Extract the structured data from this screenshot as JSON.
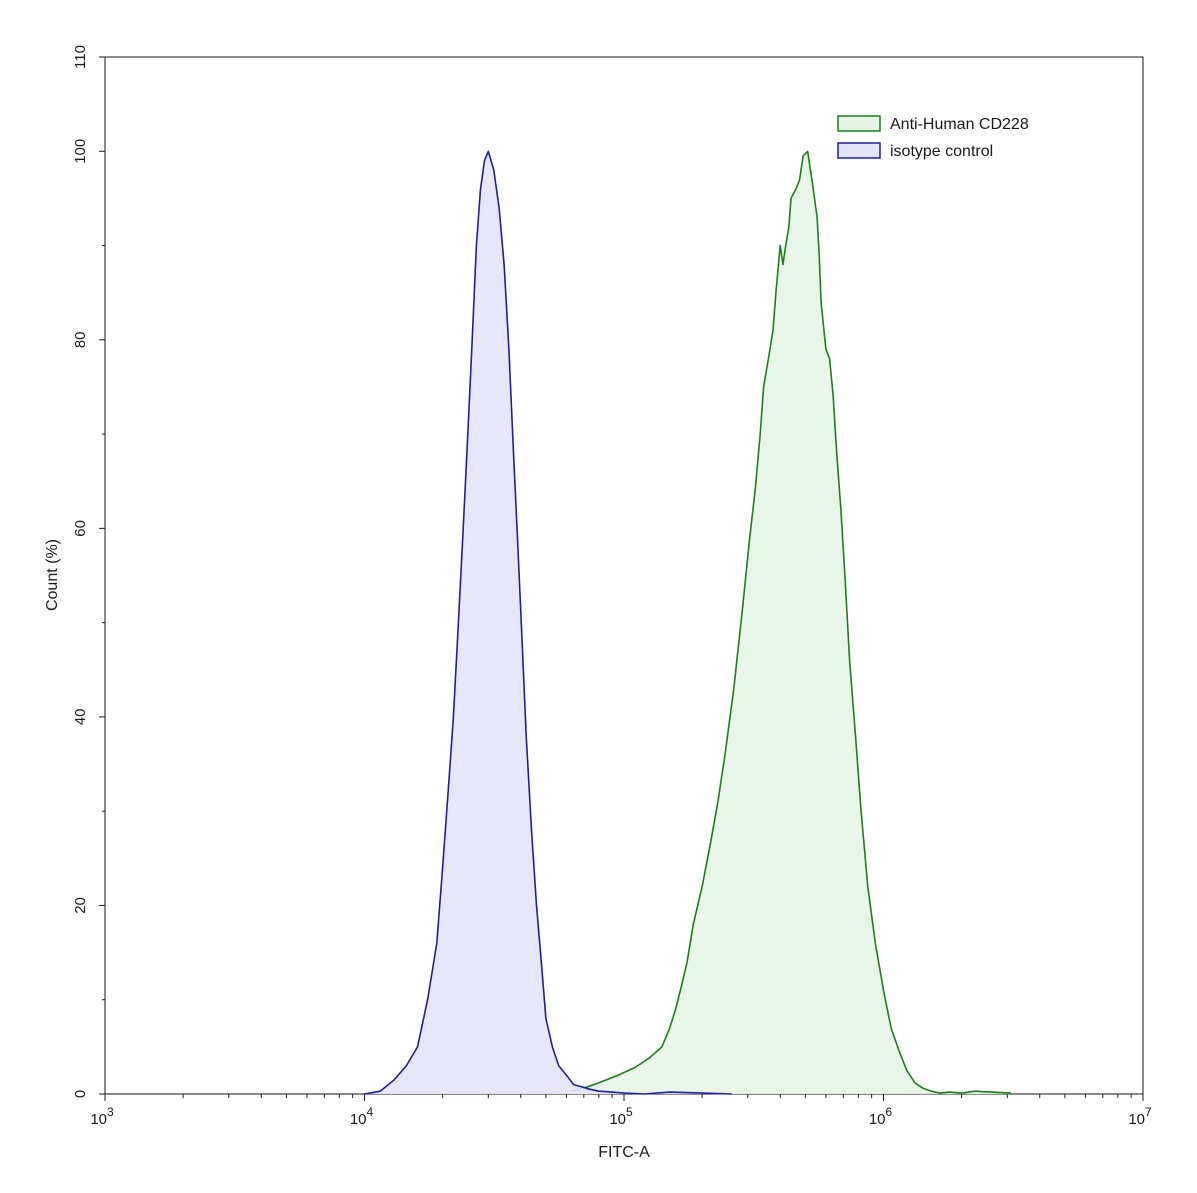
{
  "chart_data": {
    "type": "area",
    "title": "",
    "xlabel": "FITC-A",
    "ylabel": "Count  (%)",
    "x_scale": "log",
    "xlim": [
      1000,
      10000000
    ],
    "ylim": [
      0,
      110
    ],
    "x_ticks": [
      {
        "value": 1000,
        "base": "10",
        "exp": "3"
      },
      {
        "value": 10000,
        "base": "10",
        "exp": "4"
      },
      {
        "value": 100000,
        "base": "10",
        "exp": "5"
      },
      {
        "value": 1000000,
        "base": "10",
        "exp": "6"
      },
      {
        "value": 10000000,
        "base": "10",
        "exp": "7"
      }
    ],
    "y_ticks": [
      0,
      20,
      40,
      60,
      80,
      100,
      110
    ],
    "grid": false,
    "legend_position": "top-right",
    "series": [
      {
        "name": "Anti-Human CD228",
        "stroke": "#1e7d1e",
        "fill": "#e6f4e6",
        "x": [
          63000,
          73000,
          82000,
          95000,
          110000,
          125000,
          140000,
          150000,
          158000,
          165000,
          175000,
          185000,
          200000,
          215000,
          230000,
          245000,
          265000,
          285000,
          305000,
          320000,
          335000,
          345000,
          360000,
          375000,
          385000,
          400000,
          410000,
          420000,
          432000,
          440000,
          460000,
          475000,
          490000,
          510000,
          530000,
          555000,
          565000,
          575000,
          600000,
          620000,
          640000,
          660000,
          685000,
          710000,
          740000,
          780000,
          820000,
          870000,
          930000,
          1000000,
          1070000,
          1150000,
          1230000,
          1320000,
          1420000,
          1530000,
          1650000,
          1800000,
          2000000,
          2250000,
          2600000,
          3100000
        ],
        "y": [
          0.3,
          0.8,
          1.3,
          2.0,
          2.8,
          3.8,
          5.0,
          7.0,
          9.0,
          11.0,
          14.0,
          18.0,
          22.0,
          26.5,
          31.0,
          36.0,
          43.0,
          51.0,
          59.0,
          64.0,
          70.0,
          75.0,
          78.0,
          81.0,
          85.0,
          90.0,
          88.0,
          90.0,
          92.0,
          95.0,
          96.0,
          97.0,
          99.5,
          100.0,
          97.0,
          93.0,
          89.0,
          84.0,
          79.0,
          78.0,
          74.0,
          68.0,
          62.0,
          55.0,
          46.0,
          38.0,
          30.0,
          22.0,
          16.0,
          11.0,
          7.0,
          4.5,
          2.5,
          1.2,
          0.6,
          0.3,
          0.1,
          0.2,
          0.1,
          0.3,
          0.2,
          0.1
        ]
      },
      {
        "name": "isotype control",
        "stroke": "#1f1f9e",
        "fill": "#e4e4f8",
        "x": [
          10000,
          11500,
          13000,
          14500,
          16000,
          17500,
          19000,
          20000,
          21000,
          22000,
          23000,
          24000,
          25000,
          26000,
          27000,
          28000,
          29000,
          30000,
          31500,
          33000,
          34500,
          36000,
          37500,
          39000,
          40500,
          42000,
          44000,
          46000,
          48000,
          50000,
          53000,
          56000,
          60000,
          64000,
          68000,
          74000,
          80000,
          90000,
          100000,
          120000,
          150000,
          200000,
          260000
        ],
        "y": [
          0.0,
          0.3,
          1.5,
          3.0,
          5.0,
          10.0,
          16.0,
          24.0,
          32.0,
          40.0,
          50.0,
          60.0,
          70.0,
          80.0,
          90.0,
          96.0,
          99.0,
          100.0,
          98.0,
          94.0,
          88.0,
          79.0,
          68.0,
          58.0,
          48.0,
          38.0,
          28.0,
          20.0,
          14.0,
          8.0,
          5.0,
          3.0,
          2.0,
          1.0,
          0.8,
          0.5,
          0.3,
          0.2,
          0.1,
          0.0,
          0.2,
          0.1,
          0.0
        ]
      }
    ]
  }
}
